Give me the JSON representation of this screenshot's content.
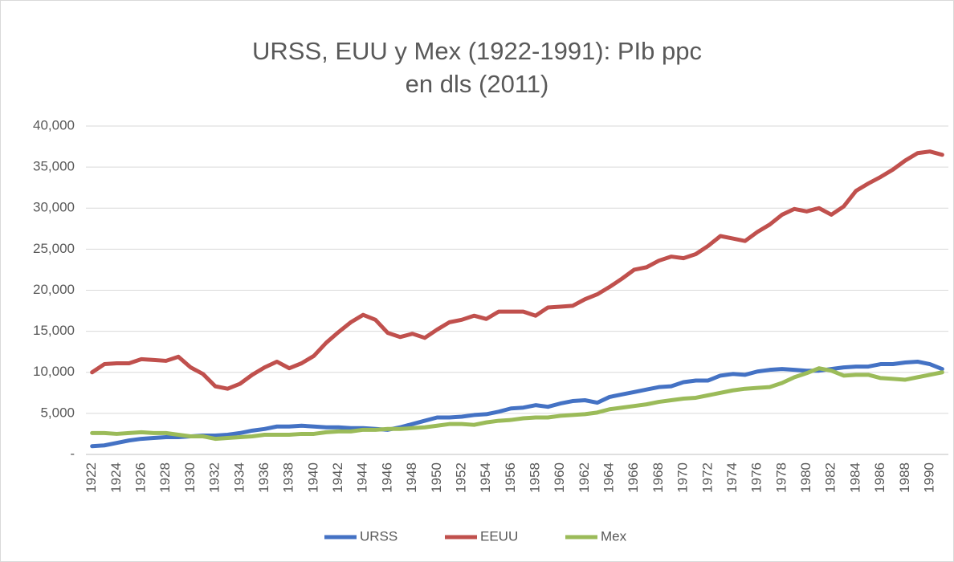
{
  "chart_data": {
    "type": "line",
    "title": "URSS, EUU y Mex (1922-1991): PIb ppc en dls (2011)",
    "categories": [
      "1922",
      null,
      "1924",
      null,
      "1926",
      null,
      "1928",
      null,
      "1930",
      null,
      "1932",
      null,
      "1934",
      null,
      "1936",
      null,
      "1938",
      null,
      "1940",
      null,
      "1942",
      null,
      "1944",
      null,
      "1946",
      null,
      "1948",
      null,
      "1950",
      null,
      "1952",
      null,
      "1954",
      null,
      "1956",
      null,
      "1958",
      null,
      "1960",
      null,
      "1962",
      null,
      "1964",
      null,
      "1966",
      null,
      "1968",
      null,
      "1970",
      null,
      "1972",
      null,
      "1974",
      null,
      "1976",
      null,
      "1978",
      null,
      "1980",
      null,
      "1982",
      null,
      "1984",
      null,
      "1986",
      null,
      "1988",
      null,
      "1990",
      null
    ],
    "series": [
      {
        "name": "URSS",
        "color": "#4472c4",
        "values": [
          1000,
          1100,
          1400,
          1700,
          1900,
          2000,
          2100,
          2100,
          2200,
          2300,
          2300,
          2400,
          2600,
          2900,
          3100,
          3400,
          3400,
          3500,
          3400,
          3300,
          3300,
          3200,
          3200,
          3100,
          3000,
          3300,
          3700,
          4100,
          4500,
          4500,
          4600,
          4800,
          4900,
          5200,
          5600,
          5700,
          6000,
          5800,
          6200,
          6500,
          6600,
          6300,
          7000,
          7300,
          7600,
          7900,
          8200,
          8300,
          8800,
          9000,
          9000,
          9600,
          9800,
          9700,
          10100,
          10300,
          10400,
          10300,
          10200,
          10200,
          10400,
          10600,
          10700,
          10700,
          11000,
          11000,
          11200,
          11300,
          11000,
          10400
        ]
      },
      {
        "name": "EEUU",
        "color": "#c0504d",
        "values": [
          10000,
          11000,
          11100,
          11100,
          11600,
          11500,
          11400,
          11900,
          10600,
          9800,
          8300,
          8000,
          8600,
          9700,
          10600,
          11300,
          10500,
          11100,
          12000,
          13600,
          14900,
          16100,
          17000,
          16400,
          14800,
          14300,
          14700,
          14200,
          15200,
          16100,
          16400,
          16900,
          16500,
          17400,
          17400,
          17400,
          16900,
          17900,
          18000,
          18100,
          18900,
          19500,
          20400,
          21400,
          22500,
          22800,
          23600,
          24100,
          23900,
          24400,
          25400,
          26600,
          26300,
          26000,
          27100,
          28000,
          29200,
          29900,
          29600,
          30000,
          29200,
          30200,
          32100,
          33000,
          33800,
          34700,
          35800,
          36700,
          36900,
          36500
        ]
      },
      {
        "name": "Mex",
        "color": "#9bbb59",
        "values": [
          2600,
          2600,
          2500,
          2600,
          2700,
          2600,
          2600,
          2400,
          2200,
          2200,
          1900,
          2000,
          2100,
          2200,
          2400,
          2400,
          2400,
          2500,
          2500,
          2700,
          2800,
          2800,
          3000,
          3000,
          3100,
          3100,
          3200,
          3300,
          3500,
          3700,
          3700,
          3600,
          3900,
          4100,
          4200,
          4400,
          4500,
          4500,
          4700,
          4800,
          4900,
          5100,
          5500,
          5700,
          5900,
          6100,
          6400,
          6600,
          6800,
          6900,
          7200,
          7500,
          7800,
          8000,
          8100,
          8200,
          8700,
          9400,
          9900,
          10500,
          10200,
          9600,
          9700,
          9700,
          9300,
          9200,
          9100,
          9400,
          9700,
          10000
        ]
      }
    ],
    "ylim": [
      0,
      40000
    ],
    "yticks": [
      {
        "value": 0,
        "label": "-"
      },
      {
        "value": 5000,
        "label": "5,000"
      },
      {
        "value": 10000,
        "label": "10,000"
      },
      {
        "value": 15000,
        "label": "15,000"
      },
      {
        "value": 20000,
        "label": "20,000"
      },
      {
        "value": 25000,
        "label": "25,000"
      },
      {
        "value": 30000,
        "label": "30,000"
      },
      {
        "value": 35000,
        "label": "35,000"
      },
      {
        "value": 40000,
        "label": "40,000"
      }
    ],
    "grid": true,
    "legend": "bottom"
  }
}
